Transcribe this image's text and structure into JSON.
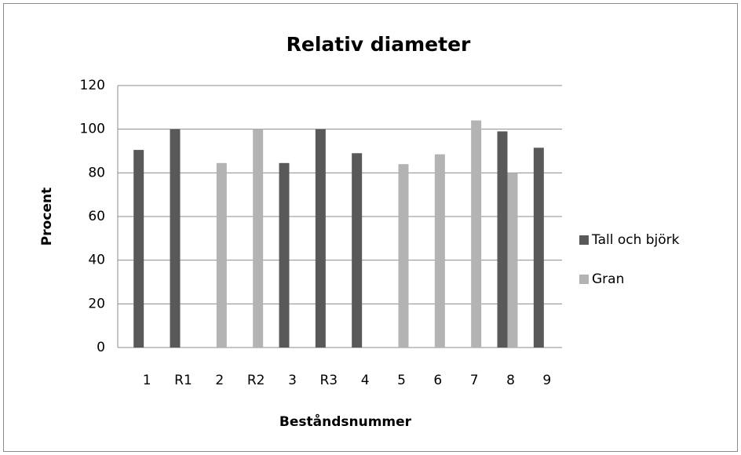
{
  "chart_data": {
    "type": "bar",
    "title": "Relativ diameter",
    "x_label": "Beståndsnummer",
    "y_label": "Procent",
    "categories": [
      "1",
      "R1",
      "2",
      "R2",
      "3",
      "R3",
      "4",
      "5",
      "6",
      "7",
      "8",
      "9"
    ],
    "series": [
      {
        "name": "Tall och björk",
        "color": "#595959",
        "values": [
          90.5,
          100,
          null,
          null,
          84.5,
          100,
          89,
          null,
          null,
          null,
          99,
          91.5
        ]
      },
      {
        "name": "Gran",
        "color": "#b3b3b3",
        "values": [
          null,
          null,
          84.5,
          100,
          null,
          null,
          null,
          84,
          88.5,
          104,
          80,
          null
        ]
      }
    ],
    "ylim": [
      0,
      120
    ],
    "yticks": [
      0,
      20,
      40,
      60,
      80,
      100,
      120
    ],
    "grid": true,
    "legend": "right"
  }
}
